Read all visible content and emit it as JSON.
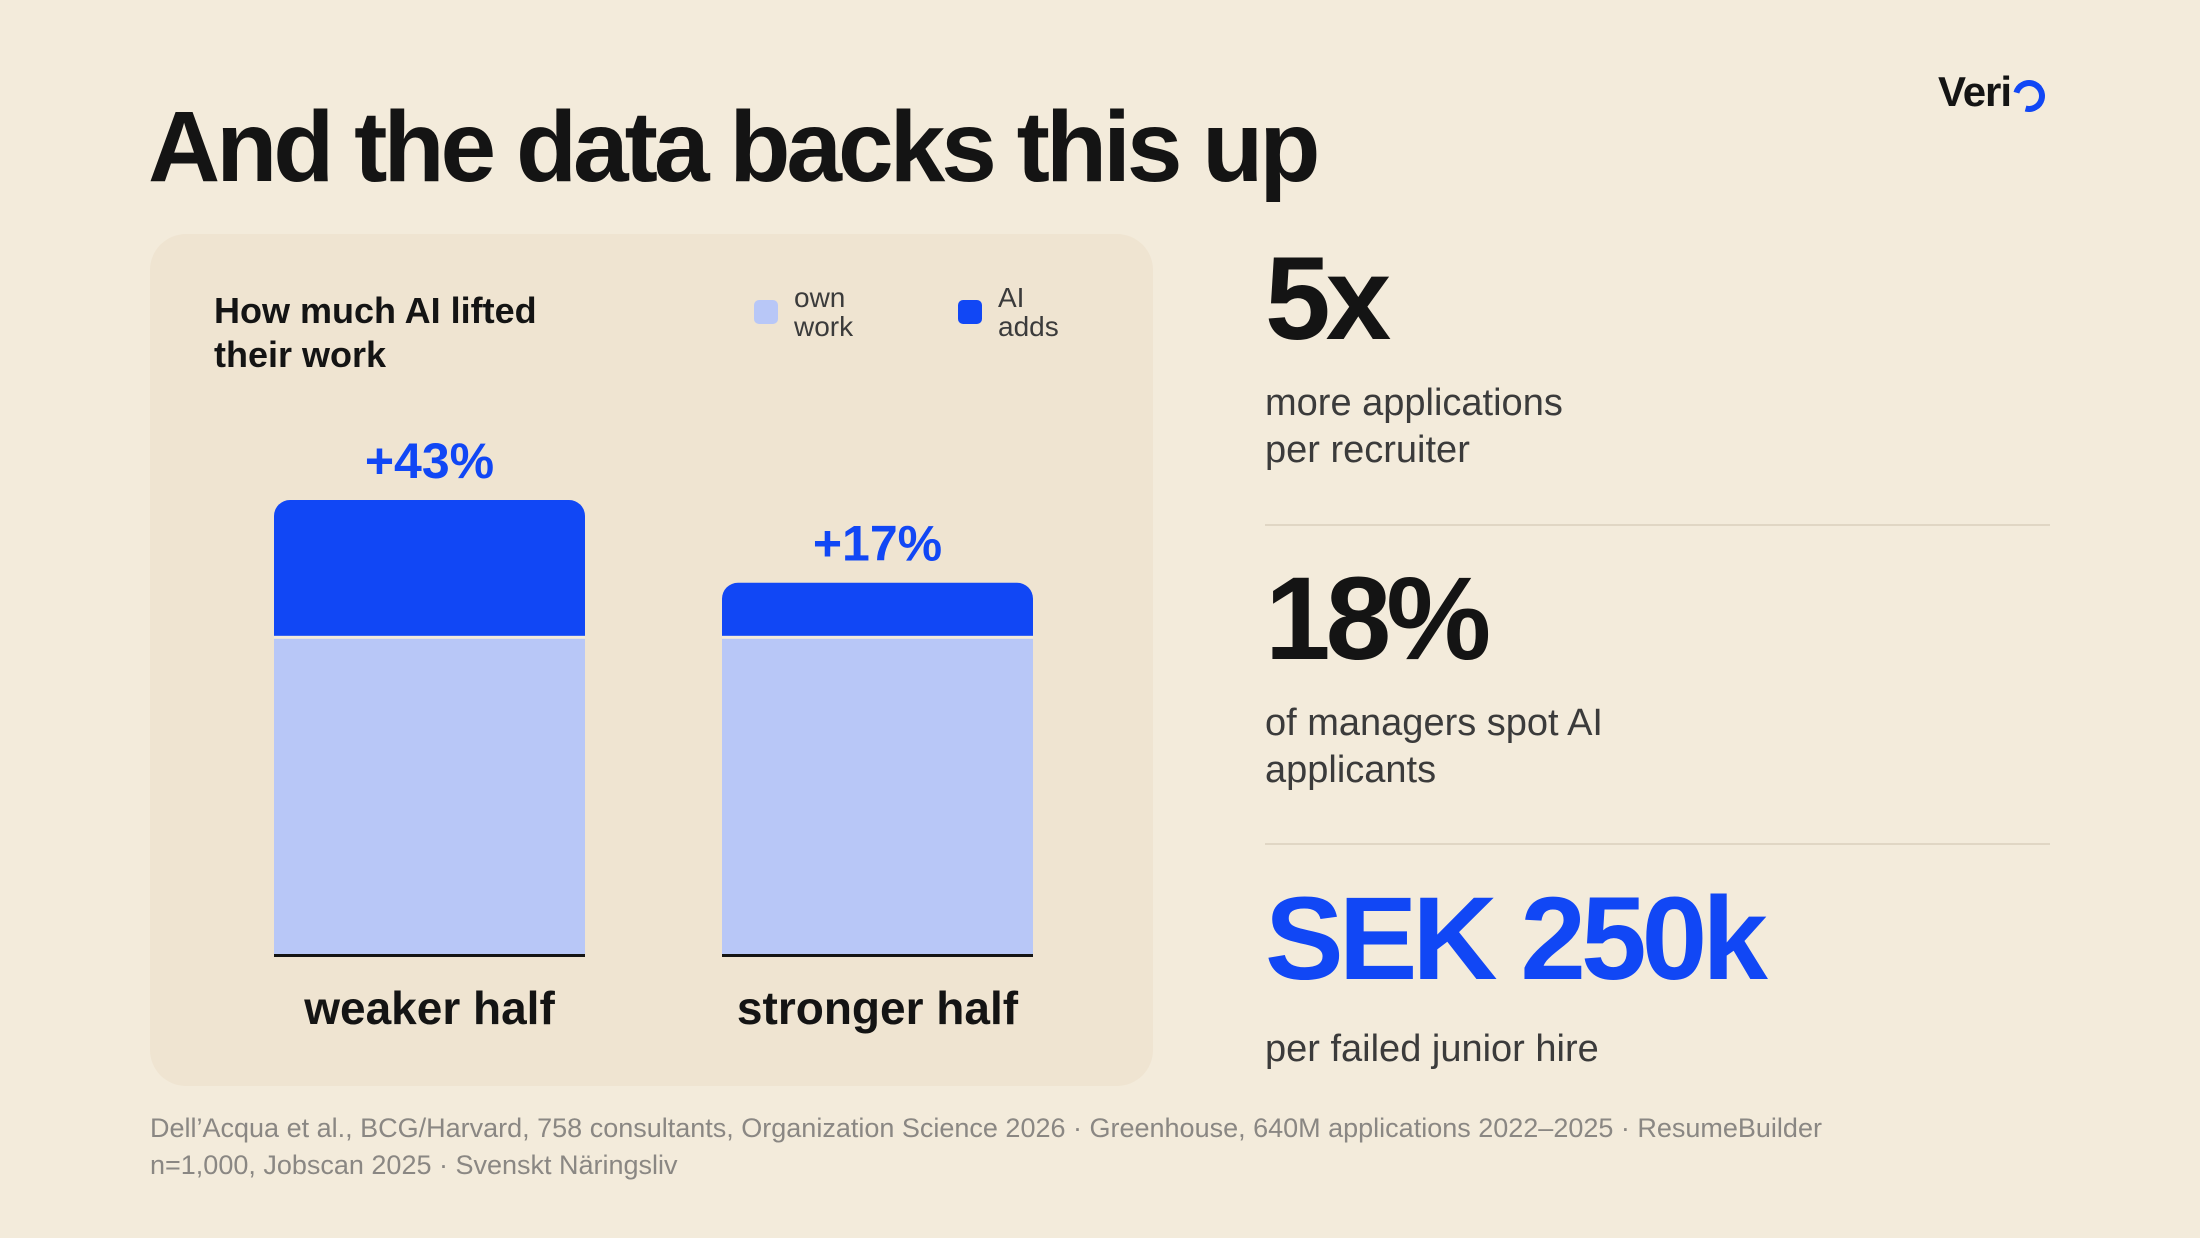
{
  "title": "And the data backs this up",
  "logo": "Veri",
  "colors": {
    "background": "#f3ebdb",
    "accent": "#1147f5",
    "own_work": "#b8c7f7",
    "ai_adds": "#1147f5"
  },
  "chart_data": {
    "type": "bar",
    "stacked": true,
    "title": "How much AI lifted their work",
    "title_lines": [
      "How much AI lifted",
      "their work"
    ],
    "legend": [
      {
        "name": "own work",
        "lines": [
          "own",
          "work"
        ],
        "color": "#b8c7f7"
      },
      {
        "name": "AI adds",
        "lines": [
          "AI",
          "adds"
        ],
        "color": "#1147f5"
      }
    ],
    "legend_position": "top-right",
    "categories": [
      "weaker half",
      "stronger half"
    ],
    "series": [
      {
        "name": "own work",
        "values": [
          100,
          100
        ]
      },
      {
        "name": "AI adds",
        "values": [
          43,
          17
        ]
      }
    ],
    "annotations": [
      "+43%",
      "+17%"
    ],
    "ylim": [
      0,
      143
    ],
    "grid": false
  },
  "stats": [
    {
      "value": "5x",
      "label": "more applications\nper recruiter",
      "color": "#141414"
    },
    {
      "value": "18%",
      "label": "of managers spot AI\napplicants",
      "color": "#141414"
    },
    {
      "value": "SEK 250k",
      "label": "per failed junior hire",
      "color": "#1147f5"
    }
  ],
  "footnote": "Dell’Acqua et al., BCG/Harvard, 758 consultants, Organization Science 2026 · Greenhouse, 640M applications 2022–2025 · ResumeBuilder n=1,000, Jobscan 2025 · Svenskt Näringsliv"
}
